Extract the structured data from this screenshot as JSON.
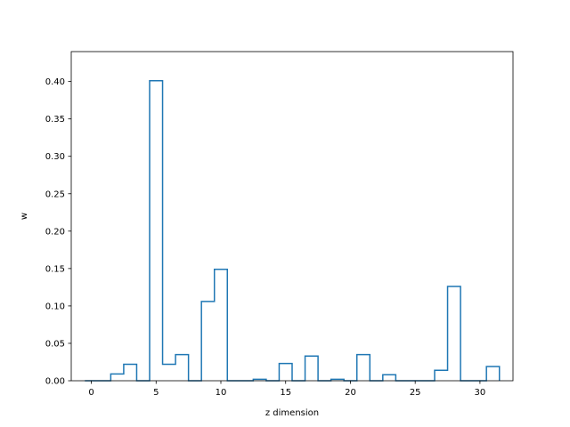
{
  "chart_data": {
    "type": "step",
    "title": "",
    "xlabel": "z dimension",
    "ylabel": "w",
    "xlim": [
      -1.55,
      32.55
    ],
    "ylim": [
      0.0,
      0.44
    ],
    "grid": false,
    "legend": "none",
    "x_ticks": [
      0,
      5,
      10,
      15,
      20,
      25,
      30
    ],
    "x_tick_labels": [
      "0",
      "5",
      "10",
      "15",
      "20",
      "25",
      "30"
    ],
    "y_ticks": [
      0.0,
      0.05,
      0.1,
      0.15,
      0.2,
      0.25,
      0.3,
      0.35,
      0.4
    ],
    "y_tick_labels": [
      "0.00",
      "0.05",
      "0.10",
      "0.15",
      "0.20",
      "0.25",
      "0.30",
      "0.35",
      "0.40"
    ],
    "colors": {
      "series": "#1f77b4",
      "axes": "#000000",
      "background": "#ffffff"
    },
    "series": [
      {
        "x": [
          0,
          1,
          2,
          3,
          4,
          5,
          6,
          7,
          8,
          9,
          10,
          11,
          12,
          13,
          14,
          15,
          16,
          17,
          18,
          19,
          20,
          21,
          22,
          23,
          24,
          25,
          26,
          27,
          28,
          29,
          30,
          31
        ],
        "values": [
          0.0,
          0.0,
          0.009,
          0.022,
          0.0,
          0.401,
          0.022,
          0.035,
          0.0,
          0.106,
          0.149,
          0.0,
          0.0,
          0.002,
          0.0,
          0.023,
          0.0,
          0.033,
          0.0,
          0.002,
          0.0,
          0.035,
          0.0,
          0.008,
          0.0,
          0.0,
          0.0,
          0.014,
          0.126,
          0.0,
          0.0,
          0.019
        ]
      }
    ]
  }
}
